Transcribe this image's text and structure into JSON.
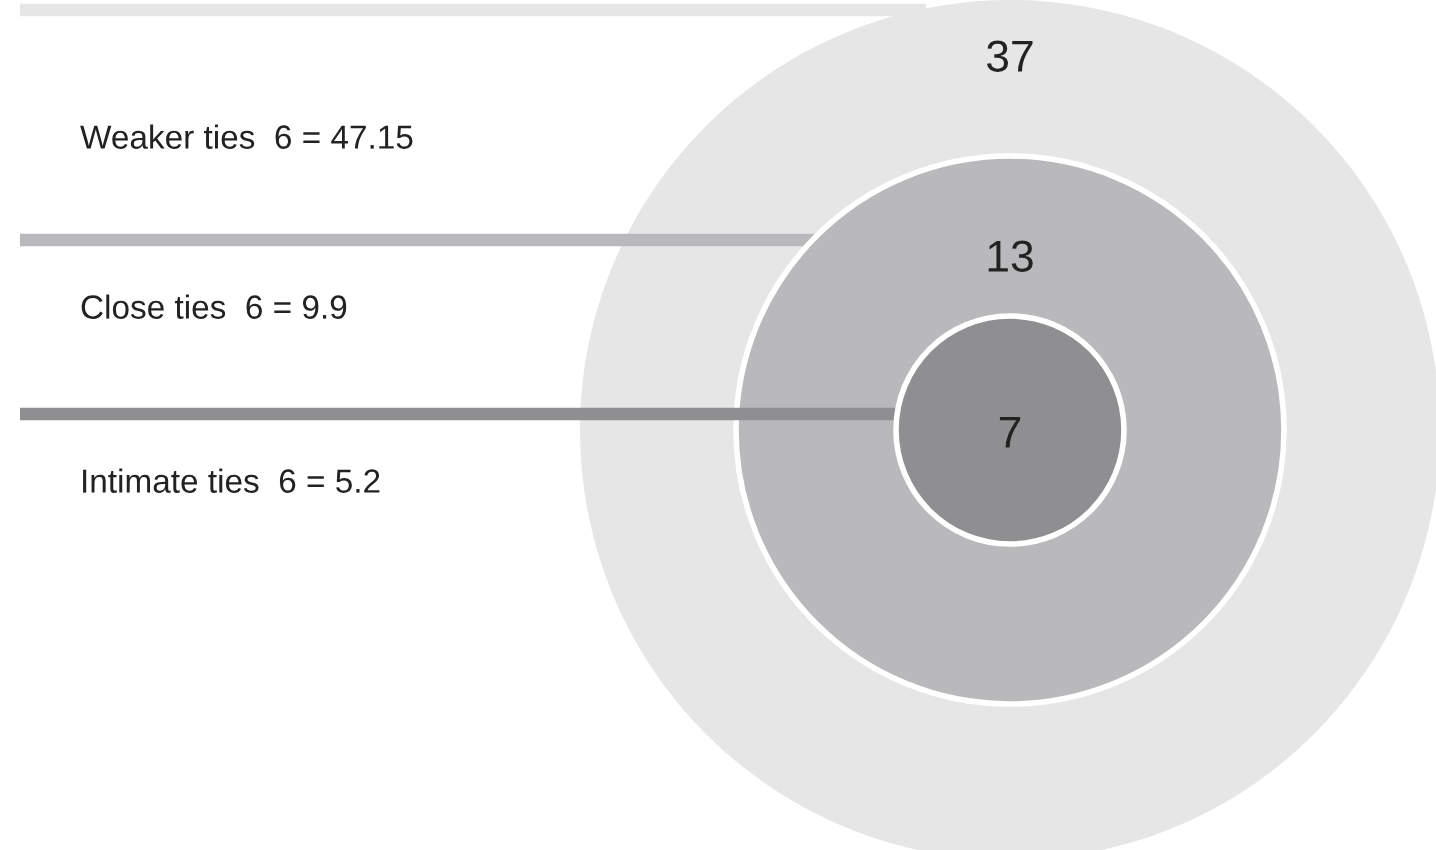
{
  "chart_data": {
    "type": "other",
    "categories": [
      "Weaker ties  6 = 47.15",
      "Close ties  6 = 9.9",
      "Intimate ties  6 = 5.2"
    ],
    "values": [
      37,
      13,
      7
    ],
    "colors": [
      "#e6e6e6",
      "#b9b9bc",
      "#8f8f91"
    ],
    "data_labels": true
  }
}
